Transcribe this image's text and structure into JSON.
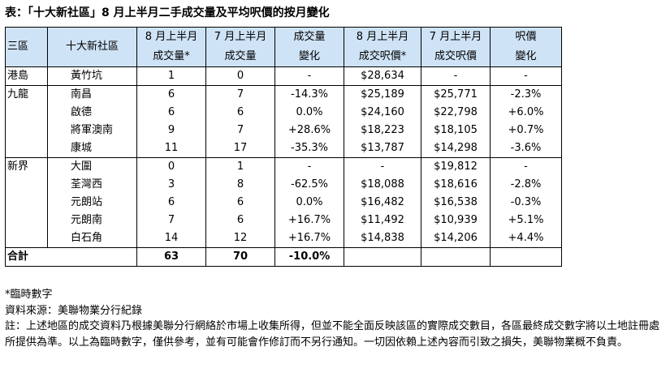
{
  "title": "表：「十大新社區」8 月上半月二手成交量及平均呎價的按月變化",
  "headers": {
    "region": "三區",
    "estate": "十大新社區",
    "aug_vol_l1": "8 月上半月",
    "aug_vol_l2": "成交量*",
    "jul_vol_l1": "7 月上半月",
    "jul_vol_l2": "成交量",
    "vol_chg_l1": "成交量",
    "vol_chg_l2": "變化",
    "aug_price_l1": "8 月上半月",
    "aug_price_l2": "成交呎價*",
    "jul_price_l1": "7 月上半月",
    "jul_price_l2": "成交呎價",
    "price_chg_l1": "呎價",
    "price_chg_l2": "變化"
  },
  "groups": [
    {
      "region": "港島",
      "rows": [
        {
          "estate": "黃竹坑",
          "aug_vol": "1",
          "jul_vol": "0",
          "vol_chg": "-",
          "aug_price": "$28,634",
          "jul_price": "-",
          "price_chg": "-"
        }
      ]
    },
    {
      "region": "九龍",
      "rows": [
        {
          "estate": "南昌",
          "aug_vol": "6",
          "jul_vol": "7",
          "vol_chg": "-14.3%",
          "aug_price": "$25,189",
          "jul_price": "$25,771",
          "price_chg": "-2.3%"
        },
        {
          "estate": "啟德",
          "aug_vol": "6",
          "jul_vol": "6",
          "vol_chg": "0.0%",
          "aug_price": "$24,160",
          "jul_price": "$22,798",
          "price_chg": "+6.0%"
        },
        {
          "estate": "將軍澳南",
          "aug_vol": "9",
          "jul_vol": "7",
          "vol_chg": "+28.6%",
          "aug_price": "$18,223",
          "jul_price": "$18,105",
          "price_chg": "+0.7%"
        },
        {
          "estate": "康城",
          "aug_vol": "11",
          "jul_vol": "17",
          "vol_chg": "-35.3%",
          "aug_price": "$13,787",
          "jul_price": "$14,298",
          "price_chg": "-3.6%"
        }
      ]
    },
    {
      "region": "新界",
      "rows": [
        {
          "estate": "大圍",
          "aug_vol": "0",
          "jul_vol": "1",
          "vol_chg": "-",
          "aug_price": "-",
          "jul_price": "$19,812",
          "price_chg": "-"
        },
        {
          "estate": "荃灣西",
          "aug_vol": "3",
          "jul_vol": "8",
          "vol_chg": "-62.5%",
          "aug_price": "$18,088",
          "jul_price": "$18,616",
          "price_chg": "-2.8%"
        },
        {
          "estate": "元朗站",
          "aug_vol": "6",
          "jul_vol": "6",
          "vol_chg": "0.0%",
          "aug_price": "$16,482",
          "jul_price": "$16,538",
          "price_chg": "-0.3%"
        },
        {
          "estate": "元朗南",
          "aug_vol": "7",
          "jul_vol": "6",
          "vol_chg": "+16.7%",
          "aug_price": "$11,492",
          "jul_price": "$10,939",
          "price_chg": "+5.1%"
        },
        {
          "estate": "白石角",
          "aug_vol": "14",
          "jul_vol": "12",
          "vol_chg": "+16.7%",
          "aug_price": "$14,838",
          "jul_price": "$14,206",
          "price_chg": "+4.4%"
        }
      ]
    }
  ],
  "total": {
    "label": "合計",
    "aug_vol": "63",
    "jul_vol": "70",
    "vol_chg": "-10.0%"
  },
  "notes": {
    "provisional": "*臨時數字",
    "source": "資料來源：美聯物業分行紀錄",
    "disclaimer": "註：上述地區的成交資料乃根據美聯分行網絡於市場上收集所得，但並不能全面反映該區的實際成交數目，各區最終成交數字將以土地註冊處所提供為準。以上為臨時數字，僅供參考，並有可能會作修訂而不另行通知。一切因依賴上述內容而引致之損失，美聯物業概不負責。"
  }
}
